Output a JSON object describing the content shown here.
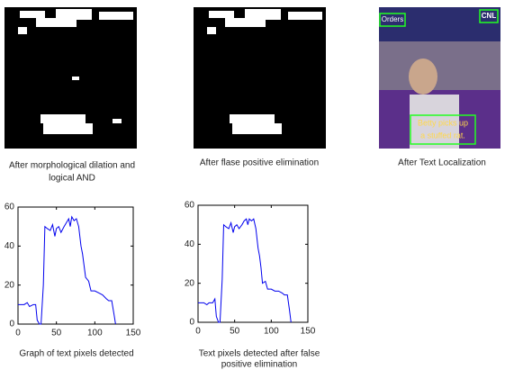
{
  "panels": [
    {
      "caption": [
        "After morphological dilation and",
        "logical AND"
      ]
    },
    {
      "caption": [
        "After flase positive elimination"
      ]
    },
    {
      "caption": [
        "After Text Localization"
      ],
      "overlay": [
        "Orders",
        "CNL",
        "Betty picks up",
        "a stuffed rat."
      ]
    }
  ],
  "chart_data": [
    {
      "type": "line",
      "caption": [
        "Graph of text pixels detected"
      ],
      "xlim": [
        0,
        150
      ],
      "ylim": [
        0,
        60
      ],
      "xticks": [
        0,
        50,
        100,
        150
      ],
      "yticks": [
        0,
        20,
        40,
        60
      ],
      "x": [
        0,
        8,
        12,
        15,
        20,
        23,
        25,
        28,
        30,
        33,
        35,
        38,
        42,
        45,
        48,
        50,
        53,
        56,
        60,
        63,
        66,
        68,
        70,
        73,
        76,
        79,
        82,
        84,
        86,
        88,
        92,
        95,
        100,
        105,
        110,
        115,
        118,
        122,
        125,
        127
      ],
      "series": [
        {
          "color": "#0000ee",
          "values": [
            10,
            10,
            11,
            9,
            10,
            10,
            2,
            0,
            0,
            20,
            50,
            49,
            48,
            51,
            45,
            49,
            50,
            47,
            50,
            52,
            54,
            50,
            55,
            53,
            54,
            50,
            40,
            36,
            30,
            24,
            22,
            17,
            17,
            16,
            15,
            13,
            12,
            12,
            5,
            0
          ]
        }
      ]
    },
    {
      "type": "line",
      "caption": [
        "Text pixels detected after false",
        "positive elimination"
      ],
      "xlim": [
        0,
        150
      ],
      "ylim": [
        0,
        60
      ],
      "xticks": [
        0,
        50,
        100,
        150
      ],
      "yticks": [
        0,
        20,
        40,
        60
      ],
      "x": [
        0,
        8,
        12,
        15,
        20,
        23,
        25,
        28,
        30,
        33,
        35,
        38,
        42,
        45,
        48,
        50,
        53,
        56,
        60,
        63,
        66,
        68,
        70,
        73,
        76,
        79,
        82,
        84,
        86,
        88,
        92,
        95,
        100,
        105,
        110,
        115,
        118,
        122,
        125,
        127
      ],
      "series": [
        {
          "color": "#0000ee",
          "values": [
            10,
            10,
            9,
            10,
            10,
            12,
            3,
            0,
            0,
            22,
            50,
            49,
            48,
            51,
            46,
            49,
            50,
            48,
            50,
            52,
            53,
            50,
            53,
            52,
            53,
            48,
            38,
            34,
            28,
            20,
            21,
            17,
            17,
            16,
            16,
            15,
            14,
            14,
            6,
            0
          ]
        }
      ]
    }
  ]
}
